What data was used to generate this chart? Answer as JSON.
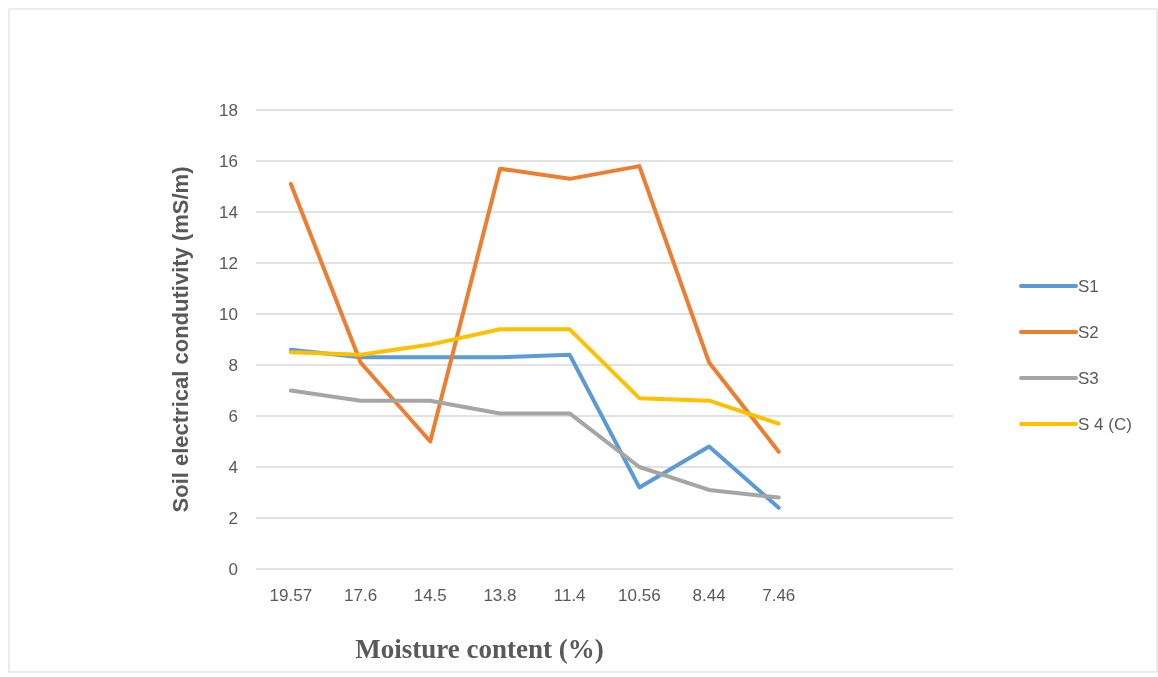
{
  "chart_data": {
    "type": "line",
    "xlabel": "Moisture content (%)",
    "ylabel": "Soil electrical condutivity (mS/m)",
    "categories": [
      "19.57",
      "17.6",
      "14.5",
      "13.8",
      "11.4",
      "10.56",
      "8.44",
      "7.46",
      null,
      null
    ],
    "series": [
      {
        "name": "S1",
        "color": "#5b9bd5",
        "values": [
          8.6,
          8.3,
          8.3,
          8.3,
          8.4,
          3.2,
          4.8,
          2.4,
          null,
          null
        ]
      },
      {
        "name": "S2",
        "color": "#ed7d31",
        "values": [
          15.1,
          8.1,
          5.0,
          15.7,
          15.3,
          15.8,
          8.1,
          4.6,
          null,
          null
        ]
      },
      {
        "name": "S3",
        "color": "#a5a5a5",
        "values": [
          7.0,
          6.6,
          6.6,
          6.1,
          6.1,
          4.0,
          3.1,
          2.8,
          null,
          null
        ]
      },
      {
        "name": "S 4 (C)",
        "color": "#ffc000",
        "values": [
          8.5,
          8.4,
          8.8,
          9.4,
          9.4,
          6.7,
          6.6,
          5.7,
          null,
          null
        ]
      }
    ],
    "ylim": [
      0,
      18
    ],
    "yticks": [
      0,
      2,
      4,
      6,
      8,
      10,
      12,
      14,
      16,
      18
    ],
    "grid": "y",
    "legend": "right"
  }
}
